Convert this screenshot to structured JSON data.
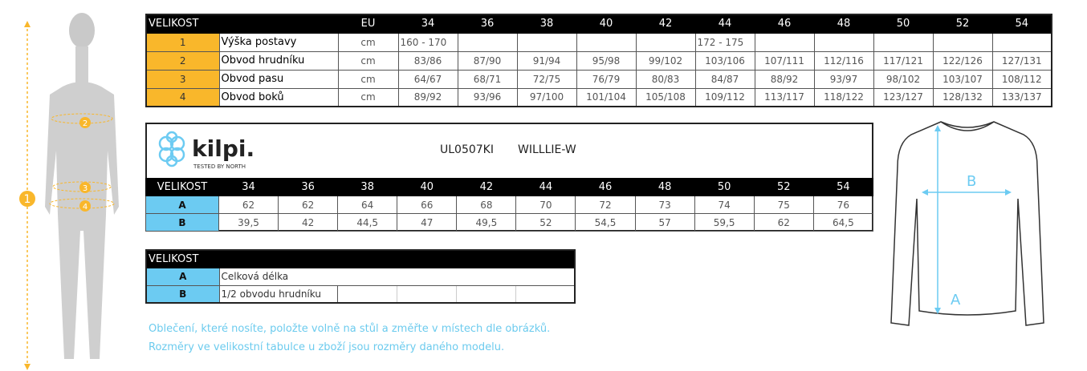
{
  "size_table": {
    "header": [
      "VELIKOST",
      "EU",
      "34",
      "36",
      "38",
      "40",
      "42",
      "44",
      "46",
      "48",
      "50",
      "52",
      "54"
    ],
    "rows": [
      {
        "num": "1",
        "label": "Výška postavy",
        "unit": "cm",
        "v34": "160 - 170",
        "v44": "172 - 175"
      },
      {
        "num": "2",
        "label": "Obvod hrudníku",
        "unit": "cm",
        "values": [
          "83/86",
          "87/90",
          "91/94",
          "95/98",
          "99/102",
          "103/106",
          "107/111",
          "112/116",
          "117/121",
          "122/126",
          "127/131"
        ]
      },
      {
        "num": "3",
        "label": "Obvod pasu",
        "unit": "cm",
        "values": [
          "64/67",
          "68/71",
          "72/75",
          "76/79",
          "80/83",
          "84/87",
          "88/92",
          "93/97",
          "98/102",
          "103/107",
          "108/112"
        ]
      },
      {
        "num": "4",
        "label": "Obvod boků",
        "unit": "cm",
        "values": [
          "89/92",
          "93/96",
          "97/100",
          "101/104",
          "105/108",
          "109/112",
          "113/117",
          "118/122",
          "123/127",
          "128/132",
          "133/137"
        ]
      }
    ]
  },
  "product": {
    "brand": "kilpi",
    "tagline": "Tested by North",
    "code": "UL0507KI",
    "name": "WILLLIE-W",
    "header": [
      "VELIKOST",
      "34",
      "36",
      "38",
      "40",
      "42",
      "44",
      "46",
      "48",
      "50",
      "52",
      "54"
    ],
    "rows": [
      {
        "label": "A",
        "values": [
          "62",
          "62",
          "64",
          "66",
          "68",
          "70",
          "72",
          "73",
          "74",
          "75",
          "76"
        ]
      },
      {
        "label": "B",
        "values": [
          "39,5",
          "42",
          "44,5",
          "47",
          "49,5",
          "52",
          "54,5",
          "57",
          "59,5",
          "62",
          "64,5"
        ]
      }
    ]
  },
  "legend": {
    "header": "VELIKOST",
    "rows": [
      {
        "label": "A",
        "text": "Celková délka"
      },
      {
        "label": "B",
        "text": "1/2 obvodu hrudníku"
      }
    ]
  },
  "notes": [
    "Oblečení, které nosíte, položte volně na stůl a změřte v místech dle obrázků.",
    "Rozměry ve velikostní tabulce u zboží jsou rozměry daného modelu."
  ],
  "figure": {
    "marker_1": "1",
    "marker_2": "2",
    "marker_3": "3",
    "marker_4": "4"
  },
  "shirt": {
    "label_a": "A",
    "label_b": "B"
  },
  "colors": {
    "orange": "#f9b72b",
    "blue": "#6ccbf2",
    "note": "#6ccbee"
  }
}
